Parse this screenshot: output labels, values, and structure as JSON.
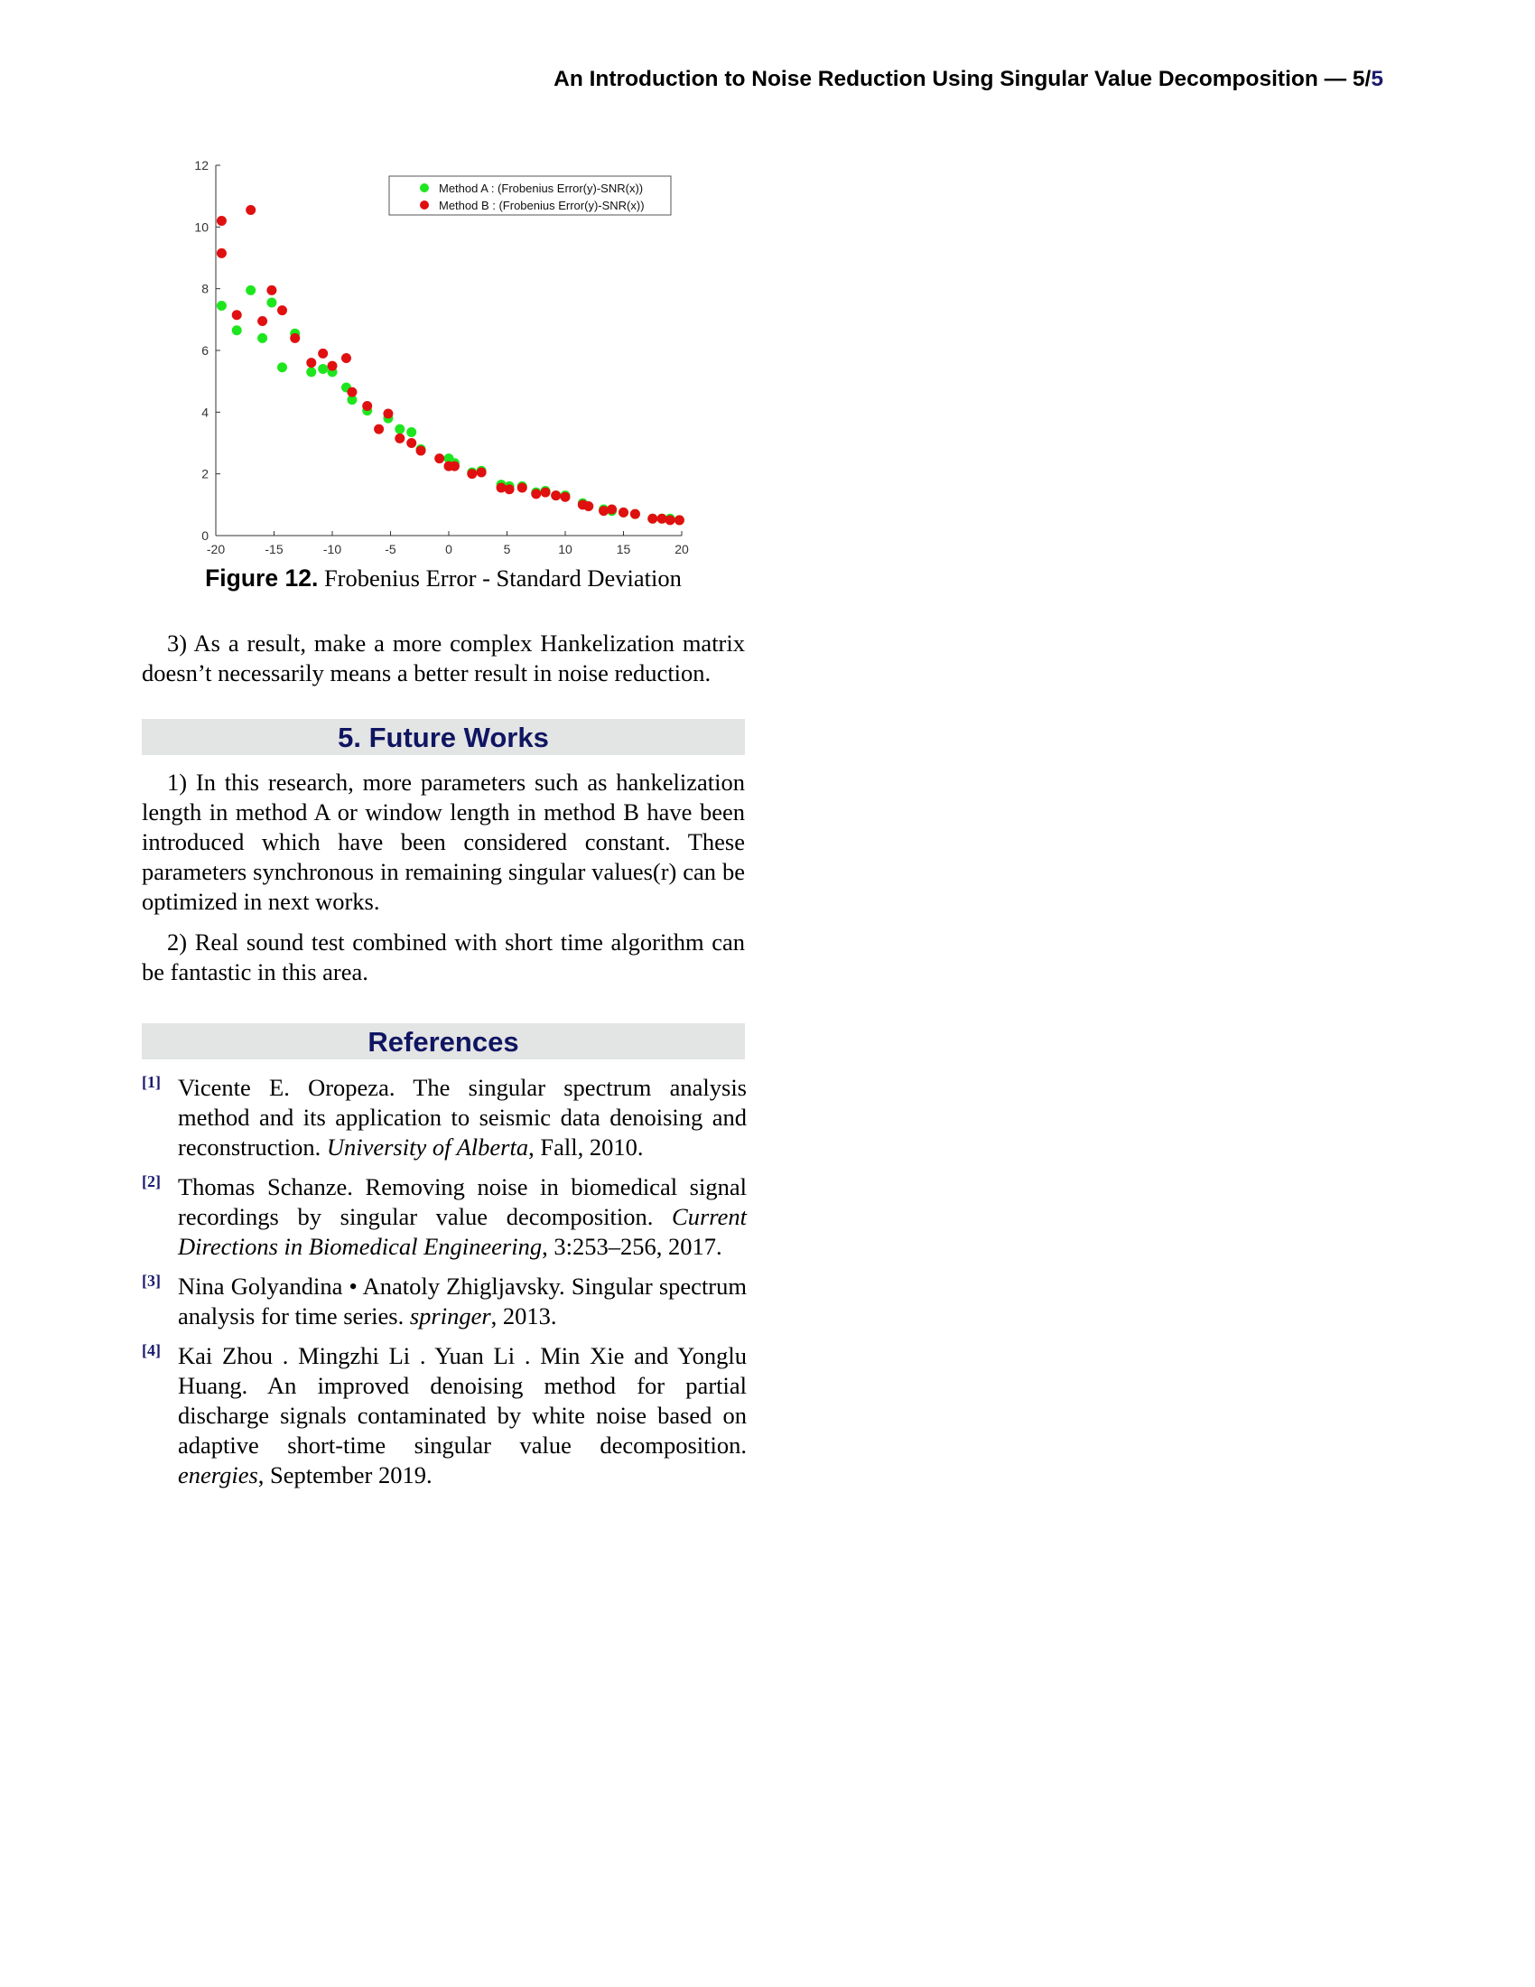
{
  "header": {
    "running_title": "An Introduction to Noise Reduction Using Singular Value Decomposition — 5/",
    "page_total": "5"
  },
  "figure": {
    "label": "Figure 12.",
    "caption": "Frobenius Error - Standard Deviation"
  },
  "chart_data": {
    "type": "scatter",
    "title": "",
    "xlabel": "",
    "ylabel": "",
    "xlim": [
      -20,
      20
    ],
    "ylim": [
      0,
      12
    ],
    "xticks": [
      "-20",
      "-15",
      "-10",
      "-5",
      "0",
      "5",
      "10",
      "15",
      "20"
    ],
    "yticks": [
      "0",
      "2",
      "4",
      "6",
      "8",
      "10",
      "12"
    ],
    "legend_position": "top-right",
    "grid": false,
    "series": [
      {
        "name": "Method A : (Frobenius Error(y)-SNR(x))",
        "color": "#1ee61e",
        "points": [
          [
            -19.5,
            7.45
          ],
          [
            -18.2,
            6.65
          ],
          [
            -17,
            7.95
          ],
          [
            -16,
            6.4
          ],
          [
            -15.2,
            7.55
          ],
          [
            -14.3,
            5.45
          ],
          [
            -13.2,
            6.55
          ],
          [
            -11.8,
            5.3
          ],
          [
            -10.8,
            5.4
          ],
          [
            -10,
            5.3
          ],
          [
            -8.8,
            4.8
          ],
          [
            -8.3,
            4.4
          ],
          [
            -7,
            4.05
          ],
          [
            -5.2,
            3.8
          ],
          [
            -4.2,
            3.45
          ],
          [
            -3.2,
            3.35
          ],
          [
            -2.4,
            2.8
          ],
          [
            0,
            2.5
          ],
          [
            0.5,
            2.35
          ],
          [
            2,
            2.05
          ],
          [
            2.8,
            2.1
          ],
          [
            4.5,
            1.65
          ],
          [
            5.2,
            1.6
          ],
          [
            6.3,
            1.6
          ],
          [
            7.5,
            1.4
          ],
          [
            8.3,
            1.45
          ],
          [
            9.2,
            1.3
          ],
          [
            10,
            1.3
          ],
          [
            11.5,
            1.05
          ],
          [
            13.3,
            0.85
          ],
          [
            14,
            0.8
          ],
          [
            15,
            0.75
          ],
          [
            16,
            0.7
          ],
          [
            17.5,
            0.55
          ],
          [
            18.3,
            0.55
          ],
          [
            19,
            0.55
          ],
          [
            19.8,
            0.5
          ]
        ]
      },
      {
        "name": "Method B : (Frobenius Error(y)-SNR(x))",
        "color": "#e01010",
        "points": [
          [
            -19.5,
            10.2
          ],
          [
            -19.5,
            9.15
          ],
          [
            -18.2,
            7.15
          ],
          [
            -17,
            10.55
          ],
          [
            -16,
            6.95
          ],
          [
            -15.2,
            7.95
          ],
          [
            -14.3,
            7.3
          ],
          [
            -13.2,
            6.4
          ],
          [
            -11.8,
            5.6
          ],
          [
            -10.8,
            5.9
          ],
          [
            -10,
            5.5
          ],
          [
            -8.8,
            5.75
          ],
          [
            -8.3,
            4.65
          ],
          [
            -7,
            4.2
          ],
          [
            -6,
            3.45
          ],
          [
            -5.2,
            3.95
          ],
          [
            -4.2,
            3.15
          ],
          [
            -3.2,
            3.0
          ],
          [
            -2.4,
            2.75
          ],
          [
            -0.8,
            2.5
          ],
          [
            0,
            2.25
          ],
          [
            0.5,
            2.25
          ],
          [
            2,
            2.0
          ],
          [
            2.8,
            2.05
          ],
          [
            4.5,
            1.55
          ],
          [
            5.2,
            1.5
          ],
          [
            6.3,
            1.55
          ],
          [
            7.5,
            1.35
          ],
          [
            8.3,
            1.4
          ],
          [
            9.2,
            1.3
          ],
          [
            10,
            1.25
          ],
          [
            11.5,
            1.0
          ],
          [
            12,
            0.95
          ],
          [
            13.3,
            0.8
          ],
          [
            14,
            0.85
          ],
          [
            15,
            0.75
          ],
          [
            16,
            0.7
          ],
          [
            17.5,
            0.55
          ],
          [
            18.3,
            0.55
          ],
          [
            19,
            0.5
          ],
          [
            19.8,
            0.5
          ]
        ]
      }
    ]
  },
  "paragraphs": {
    "p_result": "3) As a result, make a more complex Hankelization matrix doesn’t necessarily means a better result in noise reduction.",
    "p_future_1": "1) In this research, more parameters such as hankelization length in method A or window length in method B have been introduced which have been considered constant. These parameters synchronous in remaining singular values(r) can be optimized in next works.",
    "p_future_2": "2) Real sound test combined with short time algorithm can be fantastic in this area."
  },
  "sections": {
    "future_works": "5. Future Works",
    "references": "References"
  },
  "references": [
    {
      "num": "[1]",
      "text": "Vicente E. Oropeza. The singular spectrum analysis method and its application to seismic data denoising and reconstruction.",
      "venue": "University of Alberta",
      "tail": ", Fall, 2010."
    },
    {
      "num": "[2]",
      "text": "Thomas Schanze. Removing noise in biomedical signal recordings by singular value decomposition.",
      "venue": "Current Directions in Biomedical Engineering",
      "tail": ", 3:253–256, 2017."
    },
    {
      "num": "[3]",
      "text": "Nina Golyandina • Anatoly Zhigljavsky. Singular spectrum analysis for time series.",
      "venue": "springer",
      "tail": ", 2013."
    },
    {
      "num": "[4]",
      "text": "Kai Zhou . Mingzhi Li . Yuan Li . Min Xie and Yonglu Huang. An improved denoising method for partial discharge signals contaminated by white noise based on adaptive short-time singular value decomposition.",
      "venue": "energies",
      "tail": ", September 2019."
    }
  ]
}
